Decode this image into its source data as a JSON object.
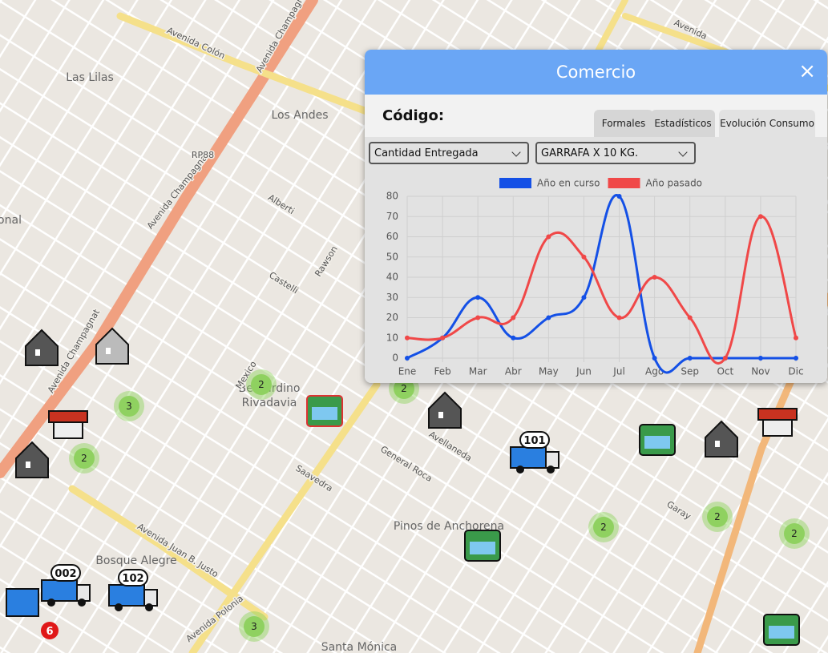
{
  "map": {
    "labels": [
      "Las Lilas",
      "Los Andes",
      "Bernardino",
      "Rivadavia",
      "Pinos de Anchorena",
      "Bosque Alegre",
      "Santa Mónica",
      "Avenida Colón",
      "Avenida Champagnat",
      "Avenida Champagnat",
      "Avenida Champagnat",
      "Avenida Juan B. Justo",
      "Avenida Polonia",
      "RP88",
      "Avenida",
      "onal",
      "Alberti",
      "Castelli",
      "Rawson",
      "Mexico",
      "Garay",
      "Saavedra",
      "Avellaneda",
      "General Roca"
    ],
    "clusters": [
      "3",
      "2",
      "2",
      "2",
      "2",
      "2",
      "2",
      "3"
    ],
    "vehicles": [
      "101",
      "002",
      "102"
    ],
    "badge": "6"
  },
  "popup": {
    "title": "Comercio",
    "close": "×",
    "code_label": "Código:",
    "tabs": [
      "Formales",
      "Estadísticos",
      "Evolución Consumo"
    ],
    "selects": [
      "Cantidad Entregada",
      "GARRAFA X 10 KG."
    ]
  },
  "chart_data": {
    "type": "line",
    "categories": [
      "Ene",
      "Feb",
      "Mar",
      "Abr",
      "May",
      "Jun",
      "Jul",
      "Ago",
      "Sep",
      "Oct",
      "Nov",
      "Dic"
    ],
    "series": [
      {
        "name": "Año en curso",
        "color": "#1450e6",
        "values": [
          0,
          10,
          30,
          10,
          20,
          30,
          80,
          0,
          0,
          0,
          0,
          0
        ]
      },
      {
        "name": "Año pasado",
        "color": "#f04848",
        "values": [
          10,
          10,
          20,
          20,
          60,
          50,
          20,
          40,
          20,
          0,
          70,
          10
        ]
      }
    ],
    "ylim": [
      0,
      80
    ],
    "yticks": [
      0,
      10,
      20,
      30,
      40,
      50,
      60,
      70,
      80
    ],
    "grid": true,
    "legend": "top"
  }
}
